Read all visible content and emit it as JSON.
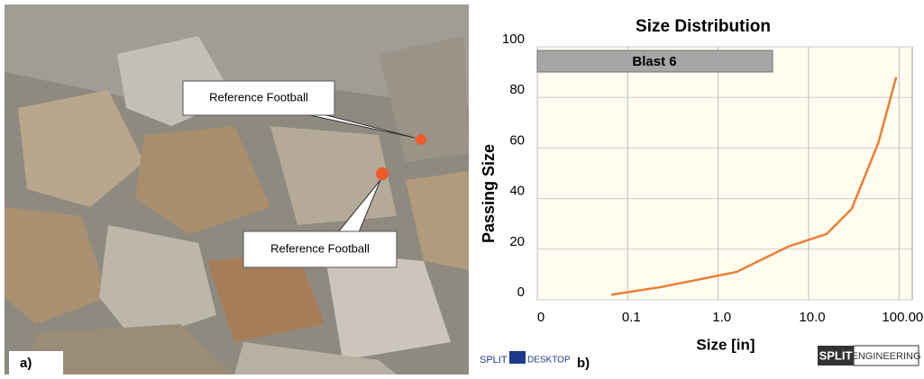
{
  "chart_data": {
    "type": "line",
    "title": "Size Distribution",
    "x_label": "Size [in]",
    "y_label": "Passing Size",
    "log_x": true,
    "grid": true,
    "x": [
      0.066,
      0.23,
      1.6,
      5.9,
      15.8,
      30,
      59,
      93
    ],
    "series": [
      {
        "name": "Blast 6",
        "color": "#ed7d31",
        "values": [
          2,
          5,
          11,
          21,
          26,
          36,
          62,
          88
        ]
      }
    ],
    "xlim": [
      0.01,
      140
    ],
    "xticks": [
      {
        "value": 0.01,
        "label": "0"
      },
      0.1,
      {
        "value": 1,
        "label": "1.0"
      },
      {
        "value": 10,
        "label": "10.0"
      },
      {
        "value": 100,
        "label": "100.00"
      }
    ],
    "ylim": [
      0,
      100
    ],
    "yticks": [
      0,
      20,
      40,
      60,
      80,
      100
    ]
  },
  "figure": {
    "panel_labels": [
      "a)",
      "b)"
    ],
    "callouts": [
      "Reference Football",
      "Reference Football"
    ],
    "logos": [
      "SPLIT",
      "DESKTOP",
      "SPLIT",
      "ENGINEERING"
    ]
  }
}
